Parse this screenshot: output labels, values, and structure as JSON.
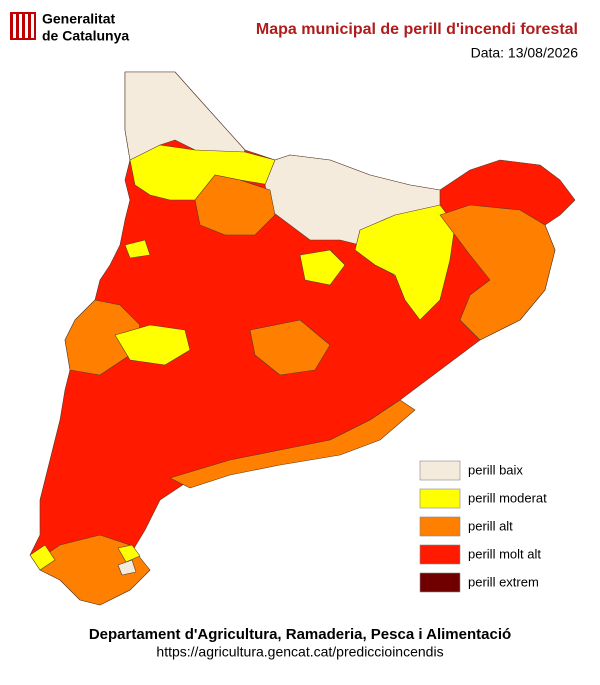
{
  "header": {
    "logo_lines": [
      "Generalitat",
      "de Catalunya"
    ],
    "title": "Mapa municipal de perill d'incendi forestal",
    "date": "Data: 13/08/2026"
  },
  "legend": [
    {
      "label": "perill baix",
      "color": "#f5ebdc"
    },
    {
      "label": "perill moderat",
      "color": "#ffff00"
    },
    {
      "label": "perill alt",
      "color": "#ff8000"
    },
    {
      "label": "perill molt alt",
      "color": "#ff1a00"
    },
    {
      "label": "perill extrem",
      "color": "#700000"
    }
  ],
  "footer": {
    "department": "Departament d'Agricultura, Ramaderia, Pesca i Alimentació",
    "url": "https://agricultura.gencat.cat/prediccioincendis"
  }
}
